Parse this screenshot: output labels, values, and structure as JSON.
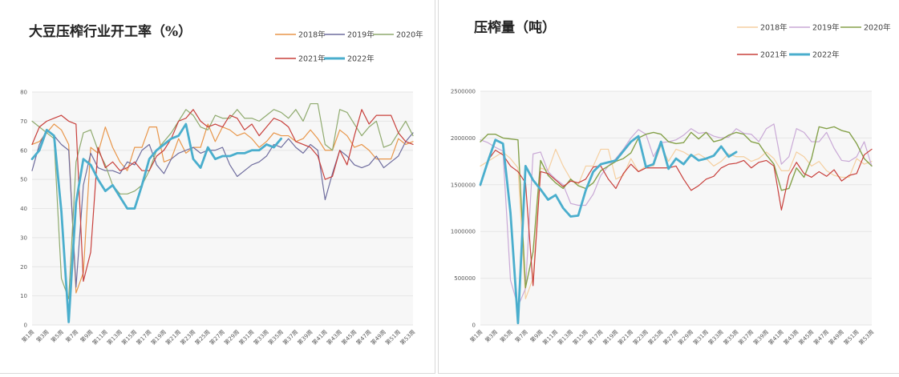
{
  "chart_data": [
    {
      "type": "line",
      "title": "大豆压榨行业开工率（%）",
      "xlabel": "",
      "ylabel": "",
      "ylim": [
        0,
        80
      ],
      "yticks": [
        0,
        10,
        20,
        30,
        40,
        50,
        60,
        70,
        80
      ],
      "grid": true,
      "legend_position": "top-right",
      "categories": [
        "第1周",
        "第2周",
        "第3周",
        "第4周",
        "第5周",
        "第6周",
        "第7周",
        "第8周",
        "第9周",
        "第10周",
        "第11周",
        "第12周",
        "第13周",
        "第14周",
        "第15周",
        "第16周",
        "第17周",
        "第18周",
        "第19周",
        "第20周",
        "第21周",
        "第22周",
        "第23周",
        "第24周",
        "第25周",
        "第26周",
        "第27周",
        "第28周",
        "第29周",
        "第30周",
        "第31周",
        "第32周",
        "第33周",
        "第34周",
        "第35周",
        "第36周",
        "第37周",
        "第38周",
        "第39周",
        "第40周",
        "第41周",
        "第42周",
        "第43周",
        "第44周",
        "第45周",
        "第46周",
        "第47周",
        "第48周",
        "第49周",
        "第50周",
        "第51周",
        "第52周",
        "第53周"
      ],
      "tick_labels": [
        "第1周",
        "第3周",
        "第5周",
        "第7周",
        "第9周",
        "第11周",
        "第13周",
        "第15周",
        "第17周",
        "第19周",
        "第21周",
        "第23周",
        "第25周",
        "第27周",
        "第29周",
        "第31周",
        "第33周",
        "第35周",
        "第37周",
        "第39周",
        "第41周",
        "第43周",
        "第45周",
        "第47周",
        "第49周",
        "第51周",
        "第53周"
      ],
      "series": [
        {
          "name": "2018年",
          "color": "#e8964a",
          "width": 1.2,
          "values": [
            62,
            63,
            66,
            69,
            67,
            62,
            11,
            18,
            61,
            59,
            68,
            61,
            56,
            53,
            61,
            61,
            68,
            68,
            56,
            57,
            64,
            59,
            61,
            61,
            69,
            63,
            68,
            67,
            65,
            66,
            64,
            61,
            63,
            66,
            65,
            65,
            63,
            64,
            67,
            64,
            60,
            60,
            67,
            65,
            61,
            62,
            60,
            57,
            57,
            57,
            64,
            62,
            63
          ]
        },
        {
          "name": "2019年",
          "color": "#6f6d9e",
          "width": 1.2,
          "values": [
            53,
            62,
            67,
            65,
            62,
            60,
            13,
            48,
            59,
            54,
            53,
            53,
            52,
            56,
            55,
            60,
            62,
            55,
            52,
            57,
            59,
            60,
            61,
            59,
            60,
            60,
            61,
            55,
            51,
            53,
            55,
            56,
            58,
            62,
            61,
            64,
            61,
            59,
            62,
            60,
            43,
            52,
            60,
            58,
            55,
            54,
            55,
            58,
            54,
            56,
            58,
            63,
            66
          ]
        },
        {
          "name": "2020年",
          "color": "#8faa6e",
          "width": 1.2,
          "values": [
            70,
            68,
            66,
            64,
            16,
            9,
            56,
            66,
            67,
            60,
            55,
            48,
            45,
            45,
            46,
            48,
            53,
            60,
            63,
            66,
            70,
            74,
            72,
            68,
            67,
            72,
            71,
            71,
            74,
            71,
            71,
            70,
            72,
            74,
            73,
            71,
            74,
            70,
            76,
            76,
            62,
            60,
            74,
            73,
            69,
            65,
            68,
            70,
            61,
            62,
            66,
            70,
            65
          ]
        },
        {
          "name": "2021年",
          "color": "#c8403c",
          "width": 1.2,
          "values": [
            62,
            68,
            70,
            71,
            72,
            70,
            69,
            15,
            25,
            61,
            54,
            56,
            53,
            54,
            56,
            53,
            53,
            58,
            60,
            64,
            70,
            71,
            74,
            70,
            68,
            69,
            68,
            72,
            71,
            67,
            69,
            65,
            68,
            71,
            70,
            68,
            63,
            62,
            61,
            58,
            50,
            51,
            60,
            55,
            65,
            74,
            69,
            72,
            72,
            72,
            66,
            63,
            62
          ]
        },
        {
          "name": "2022年",
          "color": "#4aaecd",
          "width": 2.8,
          "values": [
            57,
            60,
            67,
            65,
            39,
            1,
            42,
            57,
            55,
            50,
            46,
            48,
            44,
            40,
            40,
            48,
            57,
            60,
            62,
            64,
            65,
            69,
            57,
            54,
            61,
            57,
            58,
            58,
            59,
            59,
            60,
            60,
            62,
            61,
            64,
            null,
            null,
            null,
            null,
            null,
            null,
            null,
            null,
            null,
            null,
            null,
            null,
            null,
            null,
            null,
            null,
            null,
            null
          ]
        }
      ]
    },
    {
      "type": "line",
      "title": "压榨量（吨）",
      "xlabel": "",
      "ylabel": "",
      "ylim": [
        0,
        2500000
      ],
      "yticks": [
        0,
        500000,
        1000000,
        1500000,
        2000000,
        2500000
      ],
      "grid": true,
      "legend_position": "top-right",
      "categories": [
        "第1周",
        "第2周",
        "第3周",
        "第4周",
        "第5周",
        "第6周",
        "第7周",
        "第8周",
        "第9周",
        "第10周",
        "第11周",
        "第12周",
        "第13周",
        "第14周",
        "第15周",
        "第16周",
        "第17周",
        "第18周",
        "第19周",
        "第20周",
        "第21周",
        "第22周",
        "第23周",
        "第24周",
        "第25周",
        "第26周",
        "第27周",
        "第28周",
        "第29周",
        "第30周",
        "第31周",
        "第32周",
        "第33周",
        "第34周",
        "第35周",
        "第36周",
        "第37周",
        "第38周",
        "第39周",
        "第40周",
        "第41周",
        "第42周",
        "第43周",
        "第44周",
        "第45周",
        "第46周",
        "第47周",
        "第48周",
        "第49周",
        "第50周",
        "第51周",
        "第52周",
        "第53周"
      ],
      "tick_labels": [
        "第1周",
        "第3周",
        "第5周",
        "第7周",
        "第9周",
        "第11周",
        "第13周",
        "第15周",
        "第17周",
        "第19周",
        "第21周",
        "第23周",
        "第25周",
        "第27周",
        "第29周",
        "第31周",
        "第33周",
        "第35周",
        "第37周",
        "第39周",
        "第41周",
        "第43周",
        "第45周",
        "第47周",
        "第49周",
        "第51周",
        "第53周"
      ],
      "series": [
        {
          "name": "2018年",
          "color": "#f5cfa0",
          "width": 1.2,
          "values": [
            1700000,
            1750000,
            1800000,
            1850000,
            1780000,
            1680000,
            280000,
            500000,
            1680000,
            1650000,
            1880000,
            1700000,
            1560000,
            1500000,
            1700000,
            1700000,
            1880000,
            1880000,
            1560000,
            1600000,
            1780000,
            1640000,
            1700000,
            1700000,
            1920000,
            1750000,
            1880000,
            1850000,
            1800000,
            1830000,
            1780000,
            1700000,
            1750000,
            1830000,
            1800000,
            1800000,
            1750000,
            1780000,
            1850000,
            1780000,
            1650000,
            1650000,
            1850000,
            1800000,
            1700000,
            1750000,
            1650000,
            1600000,
            1580000,
            1580000,
            1780000,
            1720000,
            1750000
          ]
        },
        {
          "name": "2019年",
          "color": "#c9a9d6",
          "width": 1.2,
          "values": [
            1980000,
            1950000,
            1900000,
            1860000,
            480000,
            200000,
            390000,
            1830000,
            1850000,
            1640000,
            1560000,
            1500000,
            1300000,
            1280000,
            1280000,
            1400000,
            1600000,
            1700000,
            1780000,
            1880000,
            2000000,
            2090000,
            2040000,
            1800000,
            1950000,
            1960000,
            1980000,
            2030000,
            2100000,
            2050000,
            2060000,
            2020000,
            2000000,
            2010000,
            2100000,
            2050000,
            2040000,
            1960000,
            2100000,
            2150000,
            1720000,
            1800000,
            2100000,
            2060000,
            1960000,
            1960000,
            2060000,
            1890000,
            1760000,
            1750000,
            1800000,
            1960000,
            1700000
          ]
        },
        {
          "name": "2020年",
          "color": "#85a14a",
          "width": 1.4,
          "values": [
            1960000,
            2040000,
            2040000,
            2000000,
            1990000,
            1980000,
            400000,
            780000,
            1760000,
            1600000,
            1520000,
            1460000,
            1560000,
            1490000,
            1460000,
            1520000,
            1650000,
            1700000,
            1750000,
            1780000,
            1840000,
            2000000,
            2040000,
            2060000,
            2040000,
            1960000,
            1940000,
            1950000,
            2060000,
            1990000,
            2060000,
            1960000,
            1980000,
            2030000,
            2060000,
            2040000,
            1960000,
            1940000,
            1820000,
            1720000,
            1440000,
            1460000,
            1680000,
            1580000,
            1780000,
            2120000,
            2100000,
            2120000,
            2080000,
            2060000,
            1940000,
            1780000,
            1700000
          ]
        },
        {
          "name": "2021年",
          "color": "#c8403c",
          "width": 1.2,
          "values": [
            1490000,
            1760000,
            1870000,
            1820000,
            1700000,
            1640000,
            1520000,
            420000,
            1640000,
            1620000,
            1550000,
            1480000,
            1540000,
            1520000,
            1560000,
            1690000,
            1700000,
            1560000,
            1460000,
            1620000,
            1720000,
            1640000,
            1680000,
            1680000,
            1680000,
            1680000,
            1700000,
            1560000,
            1440000,
            1490000,
            1560000,
            1590000,
            1680000,
            1720000,
            1730000,
            1760000,
            1680000,
            1740000,
            1760000,
            1700000,
            1230000,
            1600000,
            1740000,
            1620000,
            1580000,
            1640000,
            1590000,
            1660000,
            1540000,
            1600000,
            1620000,
            1820000,
            1880000
          ]
        },
        {
          "name": "2022年",
          "color": "#4aaecd",
          "width": 2.8,
          "values": [
            1500000,
            1750000,
            1980000,
            1940000,
            1200000,
            20000,
            1700000,
            1550000,
            1450000,
            1340000,
            1390000,
            1250000,
            1160000,
            1170000,
            1440000,
            1640000,
            1720000,
            1740000,
            1760000,
            1860000,
            1960000,
            2020000,
            1690000,
            1720000,
            1960000,
            1670000,
            1780000,
            1720000,
            1820000,
            1760000,
            1780000,
            1810000,
            1910000,
            1800000,
            1850000,
            null,
            null,
            null,
            null,
            null,
            null,
            null,
            null,
            null,
            null,
            null,
            null,
            null,
            null,
            null,
            null,
            null,
            null
          ]
        }
      ]
    }
  ]
}
